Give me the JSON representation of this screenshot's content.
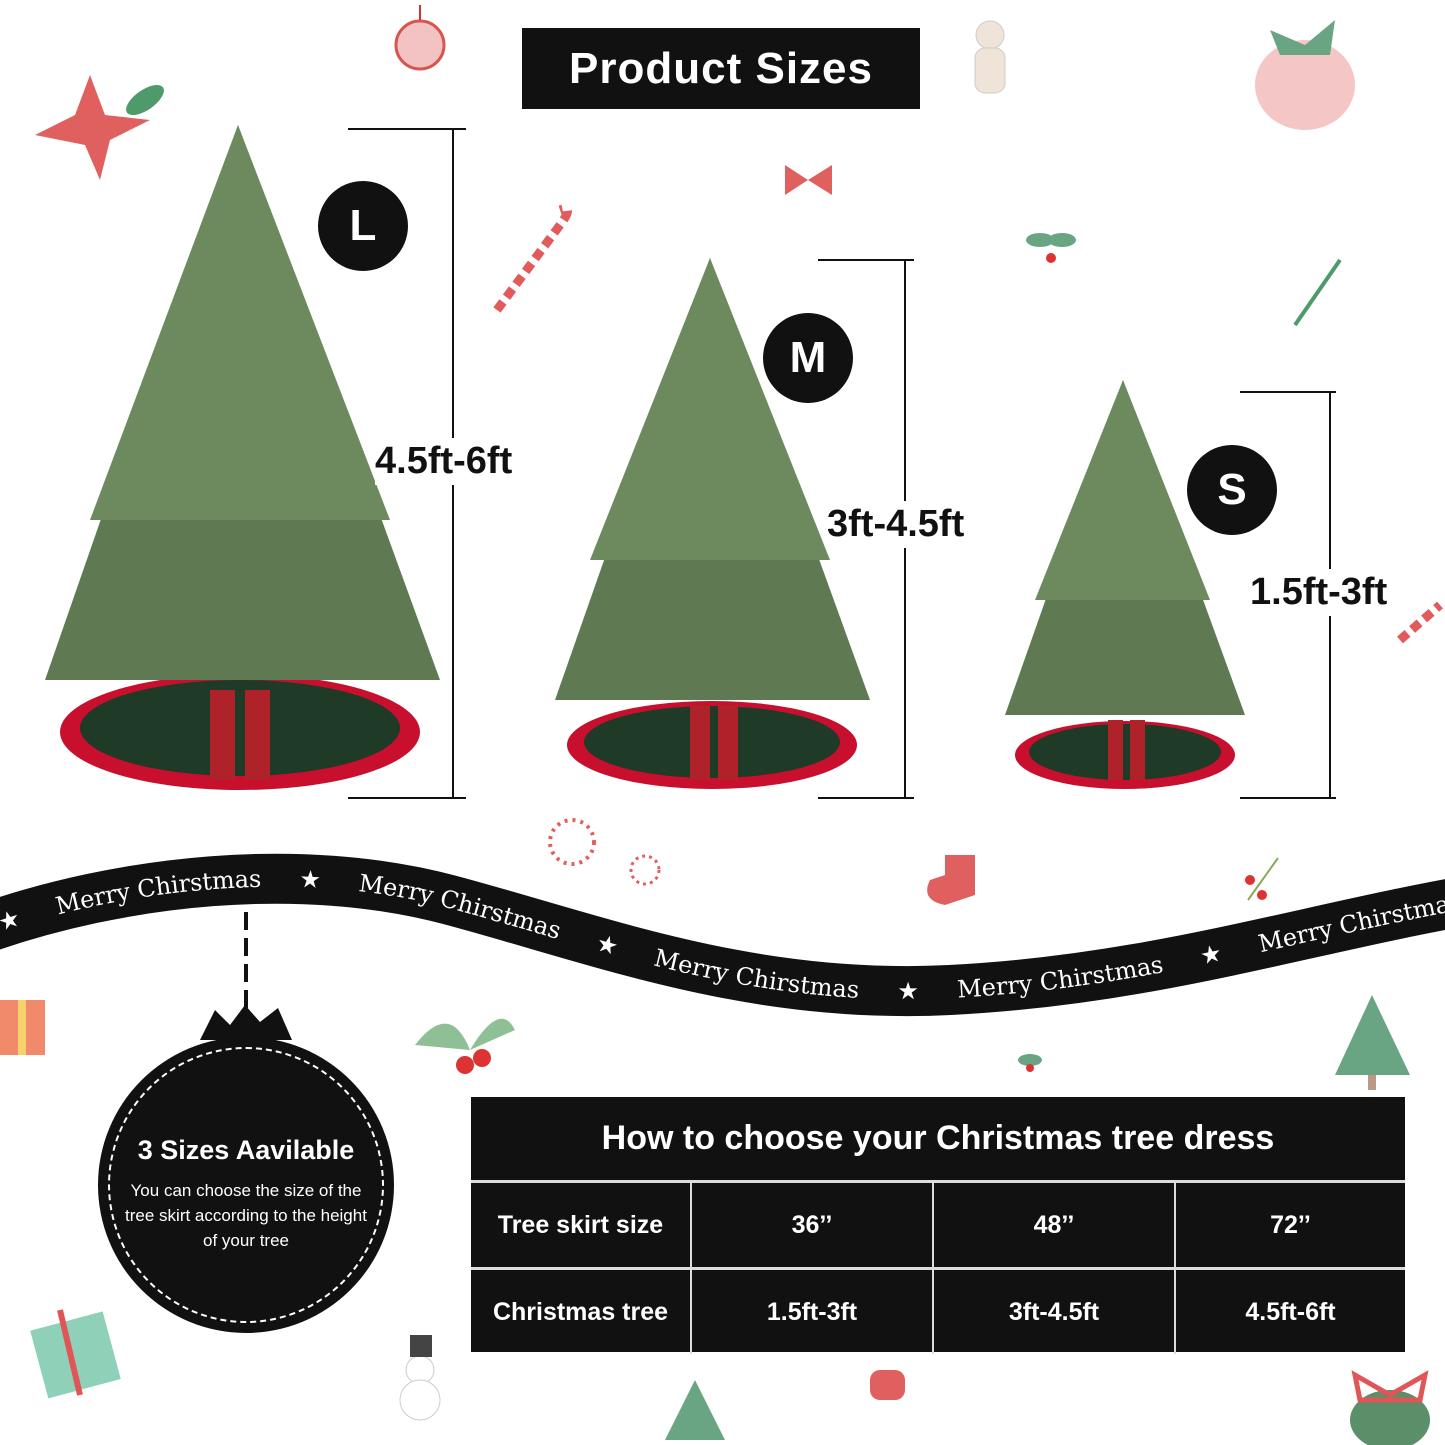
{
  "title": "Product Sizes",
  "sizes": [
    {
      "badge": "L",
      "range": "4.5ft-6ft"
    },
    {
      "badge": "M",
      "range": "3ft-4.5ft"
    },
    {
      "badge": "S",
      "range": "1.5ft-3ft"
    }
  ],
  "ribbon": {
    "text": "Merry Chirstmas",
    "repeated_text": "★     Merry Chirstmas     ★     Merry Chirstmas     ★     Merry Chirstmas     ★     Merry Chirstmas     ★     Merry Chirstmas"
  },
  "ornament": {
    "heading": "3 Sizes Aavilable",
    "text": "You can choose the size of the tree skirt according to the height of your tree"
  },
  "table": {
    "title": "How to choose your Christmas tree dress",
    "rows": [
      {
        "label": "Tree skirt size",
        "values": [
          "36’’",
          "48’’",
          "72’’"
        ]
      },
      {
        "label": "Christmas tree",
        "values": [
          "1.5ft-3ft",
          "3ft-4.5ft",
          "4.5ft-6ft"
        ]
      }
    ]
  },
  "colors": {
    "black": "#111111",
    "tree_green": "#5f7a52",
    "skirt_green": "#1f3a26",
    "skirt_red": "#c8102e",
    "accent_red": "#d9534f",
    "holly_green": "#6aa583"
  }
}
